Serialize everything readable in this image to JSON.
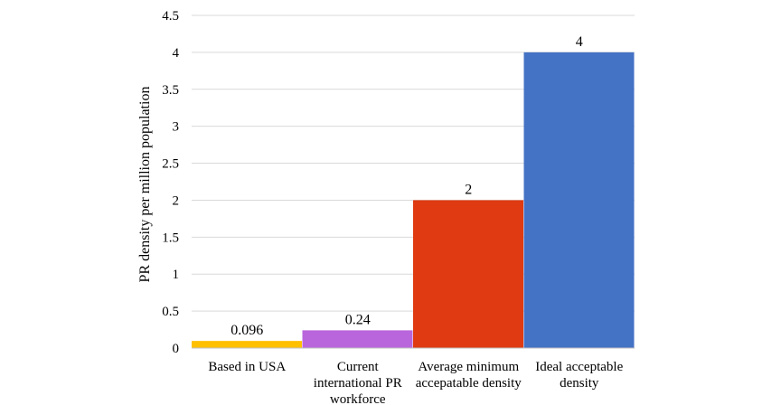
{
  "chart_data": {
    "type": "bar",
    "categories": [
      [
        "Based in USA"
      ],
      [
        "Current",
        "international PR",
        "workforce"
      ],
      [
        "Average minimum",
        "accepatable density"
      ],
      [
        "Ideal acceptable",
        "density"
      ]
    ],
    "values": [
      0.096,
      0.24,
      2,
      4
    ],
    "value_labels": [
      "0.096",
      "0.24",
      "2",
      "4"
    ],
    "colors": [
      "#FFC000",
      "#B966DC",
      "#DF3A12",
      "#4472C4"
    ],
    "ylabel": "PR density per million population",
    "ylim": [
      0,
      4.5
    ],
    "yticks": [
      0,
      0.5,
      1,
      1.5,
      2,
      2.5,
      3,
      3.5,
      4,
      4.5
    ],
    "ytick_labels": [
      "0",
      "0.5",
      "1",
      "1.5",
      "2",
      "2.5",
      "3",
      "3.5",
      "4",
      "4.5"
    ],
    "grid": true
  }
}
